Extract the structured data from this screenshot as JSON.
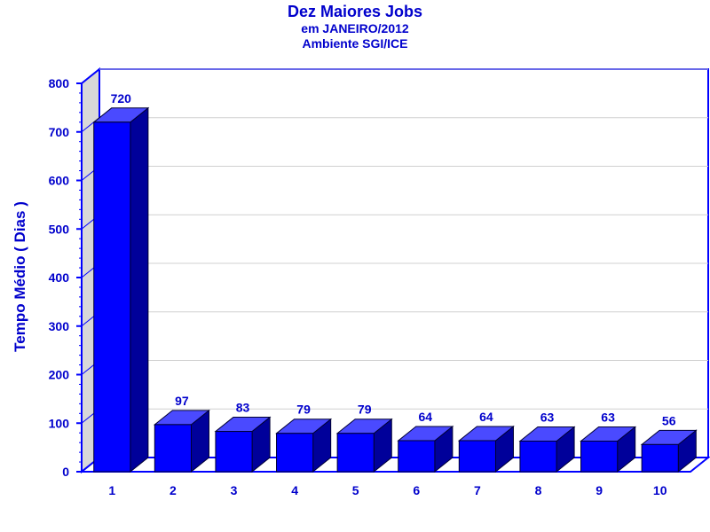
{
  "chart_data": {
    "type": "bar",
    "title": "Dez Maiores Jobs",
    "subtitle": "em JANEIRO/2012",
    "subtitle2": "Ambiente SGI/ICE",
    "ylabel": "Tempo Médio ( Dias )",
    "xlabel": "",
    "categories": [
      "1",
      "2",
      "3",
      "4",
      "5",
      "6",
      "7",
      "8",
      "9",
      "10"
    ],
    "values": [
      720,
      97,
      83,
      79,
      79,
      64,
      64,
      63,
      63,
      56
    ],
    "ylim": [
      0,
      800
    ],
    "yticks": [
      0,
      100,
      200,
      300,
      400,
      500,
      600,
      700,
      800
    ],
    "grid": true,
    "legend": "none",
    "colors": {
      "bar_front": "#0000ff",
      "bar_top": "#4a4aff",
      "bar_side": "#00009a",
      "text": "#0000cc",
      "wall": "#d8d8d8",
      "axis": "#0000ff",
      "grid": "#d0d0d0"
    }
  }
}
